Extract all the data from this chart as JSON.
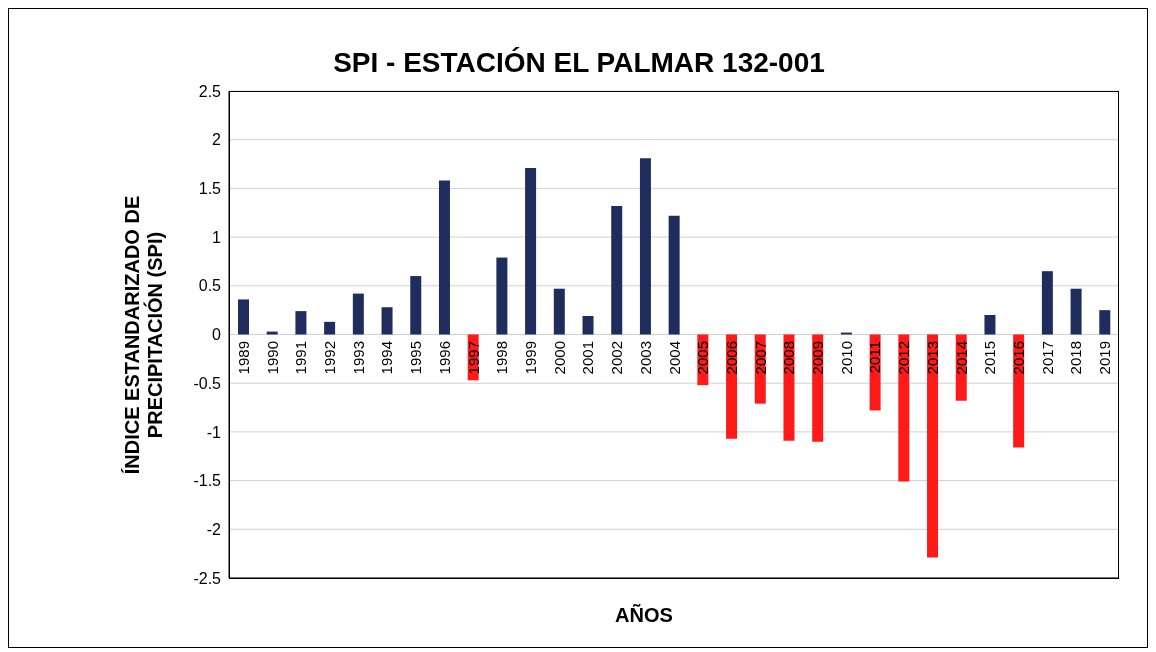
{
  "chart_data": {
    "type": "bar",
    "title": "SPI - ESTACIÓN EL PALMAR 132-001",
    "xlabel": "AÑOS",
    "ylabel": "ÍNDICE ESTANDARIZADO DE PRECIPITACIÓN (SPI)",
    "categories": [
      "1989",
      "1990",
      "1991",
      "1992",
      "1993",
      "1994",
      "1995",
      "1996",
      "1997",
      "1998",
      "1999",
      "2000",
      "2001",
      "2002",
      "2003",
      "2004",
      "2005",
      "2006",
      "2007",
      "2008",
      "2009",
      "2010",
      "2011",
      "2012",
      "2013",
      "2014",
      "2015",
      "2016",
      "2017",
      "2018",
      "2019"
    ],
    "values": [
      0.36,
      0.03,
      0.24,
      0.13,
      0.42,
      0.28,
      0.6,
      1.58,
      -0.47,
      0.79,
      1.71,
      0.47,
      0.19,
      1.32,
      1.81,
      1.22,
      -0.52,
      -1.07,
      -0.71,
      -1.09,
      -1.1,
      0.02,
      -0.78,
      -1.51,
      -2.29,
      -0.68,
      0.2,
      -1.16,
      0.65,
      0.47,
      0.25
    ],
    "colors": [
      "#1f2d5c",
      "#1f2d5c",
      "#1f2d5c",
      "#1f2d5c",
      "#1f2d5c",
      "#1f2d5c",
      "#1f2d5c",
      "#1f2d5c",
      "#ff1a1a",
      "#1f2d5c",
      "#1f2d5c",
      "#1f2d5c",
      "#1f2d5c",
      "#1f2d5c",
      "#1f2d5c",
      "#1f2d5c",
      "#ff1a1a",
      "#ff1a1a",
      "#ff1a1a",
      "#ff1a1a",
      "#ff1a1a",
      "#1f2d5c",
      "#ff1a1a",
      "#ff1a1a",
      "#ff1a1a",
      "#ff1a1a",
      "#1f2d5c",
      "#ff1a1a",
      "#1f2d5c",
      "#1f2d5c",
      "#1f2d5c"
    ],
    "ylim": [
      -2.5,
      2.5
    ],
    "yticks": [
      -2.5,
      -2,
      -1.5,
      -1,
      -0.5,
      0,
      0.5,
      1,
      1.5,
      2,
      2.5
    ],
    "grid": "y"
  }
}
